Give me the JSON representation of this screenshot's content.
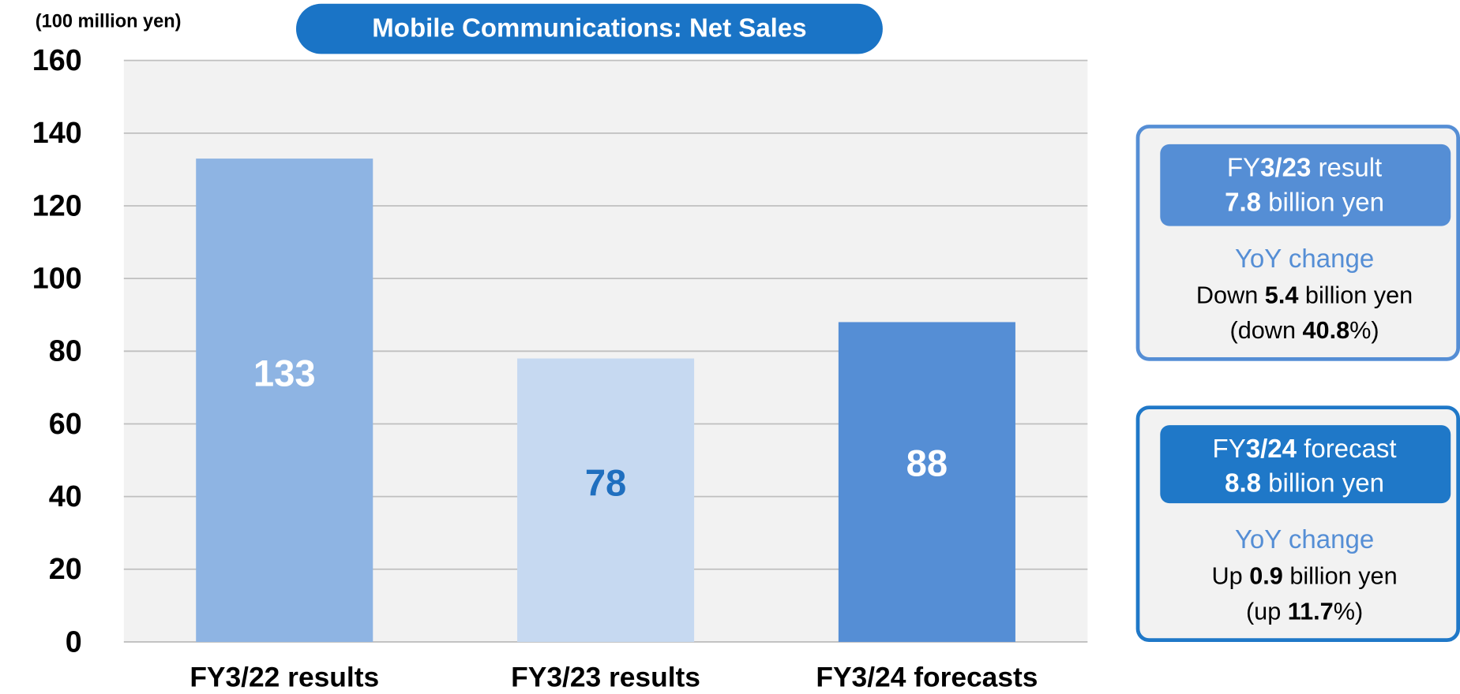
{
  "chart_data": {
    "type": "bar",
    "title": "Mobile Communications: Net Sales",
    "unit_label": "(100 million yen)",
    "categories": [
      "FY3/22 results",
      "FY3/23 results",
      "FY3/24 forecasts"
    ],
    "values": [
      133,
      78,
      88
    ],
    "colors": [
      "#8eb4e3",
      "#c6d9f1",
      "#558ed5"
    ],
    "value_label_colors": [
      "#ffffff",
      "#1f6fbf",
      "#ffffff"
    ],
    "ylim": [
      0,
      160
    ],
    "yticks": [
      0,
      20,
      40,
      60,
      80,
      100,
      120,
      140,
      160
    ],
    "grid": true
  },
  "panels": [
    {
      "header": [
        [
          {
            "text": "FY"
          },
          {
            "text": "3/23",
            "bold": true
          },
          {
            "text": " result"
          }
        ],
        [
          {
            "text": "7.8",
            "bold": true
          },
          {
            "text": " billion yen"
          }
        ]
      ],
      "subtitle": "YoY change",
      "body": [
        [
          {
            "text": "Down "
          },
          {
            "text": "5.4",
            "bold": true
          },
          {
            "text": " billion yen"
          }
        ],
        [
          {
            "text": "(down "
          },
          {
            "text": "40.8",
            "bold": true
          },
          {
            "text": "%)"
          }
        ]
      ],
      "color": "#558ed5"
    },
    {
      "header": [
        [
          {
            "text": "FY"
          },
          {
            "text": "3/24",
            "bold": true
          },
          {
            "text": " forecast"
          }
        ],
        [
          {
            "text": "8.8",
            "bold": true
          },
          {
            "text": " billion yen"
          }
        ]
      ],
      "subtitle": "YoY change",
      "body": [
        [
          {
            "text": "Up "
          },
          {
            "text": "0.9",
            "bold": true
          },
          {
            "text": " billion yen"
          }
        ],
        [
          {
            "text": "(up "
          },
          {
            "text": "11.7",
            "bold": true
          },
          {
            "text": "%)"
          }
        ]
      ],
      "color": "#1f78c8"
    }
  ]
}
